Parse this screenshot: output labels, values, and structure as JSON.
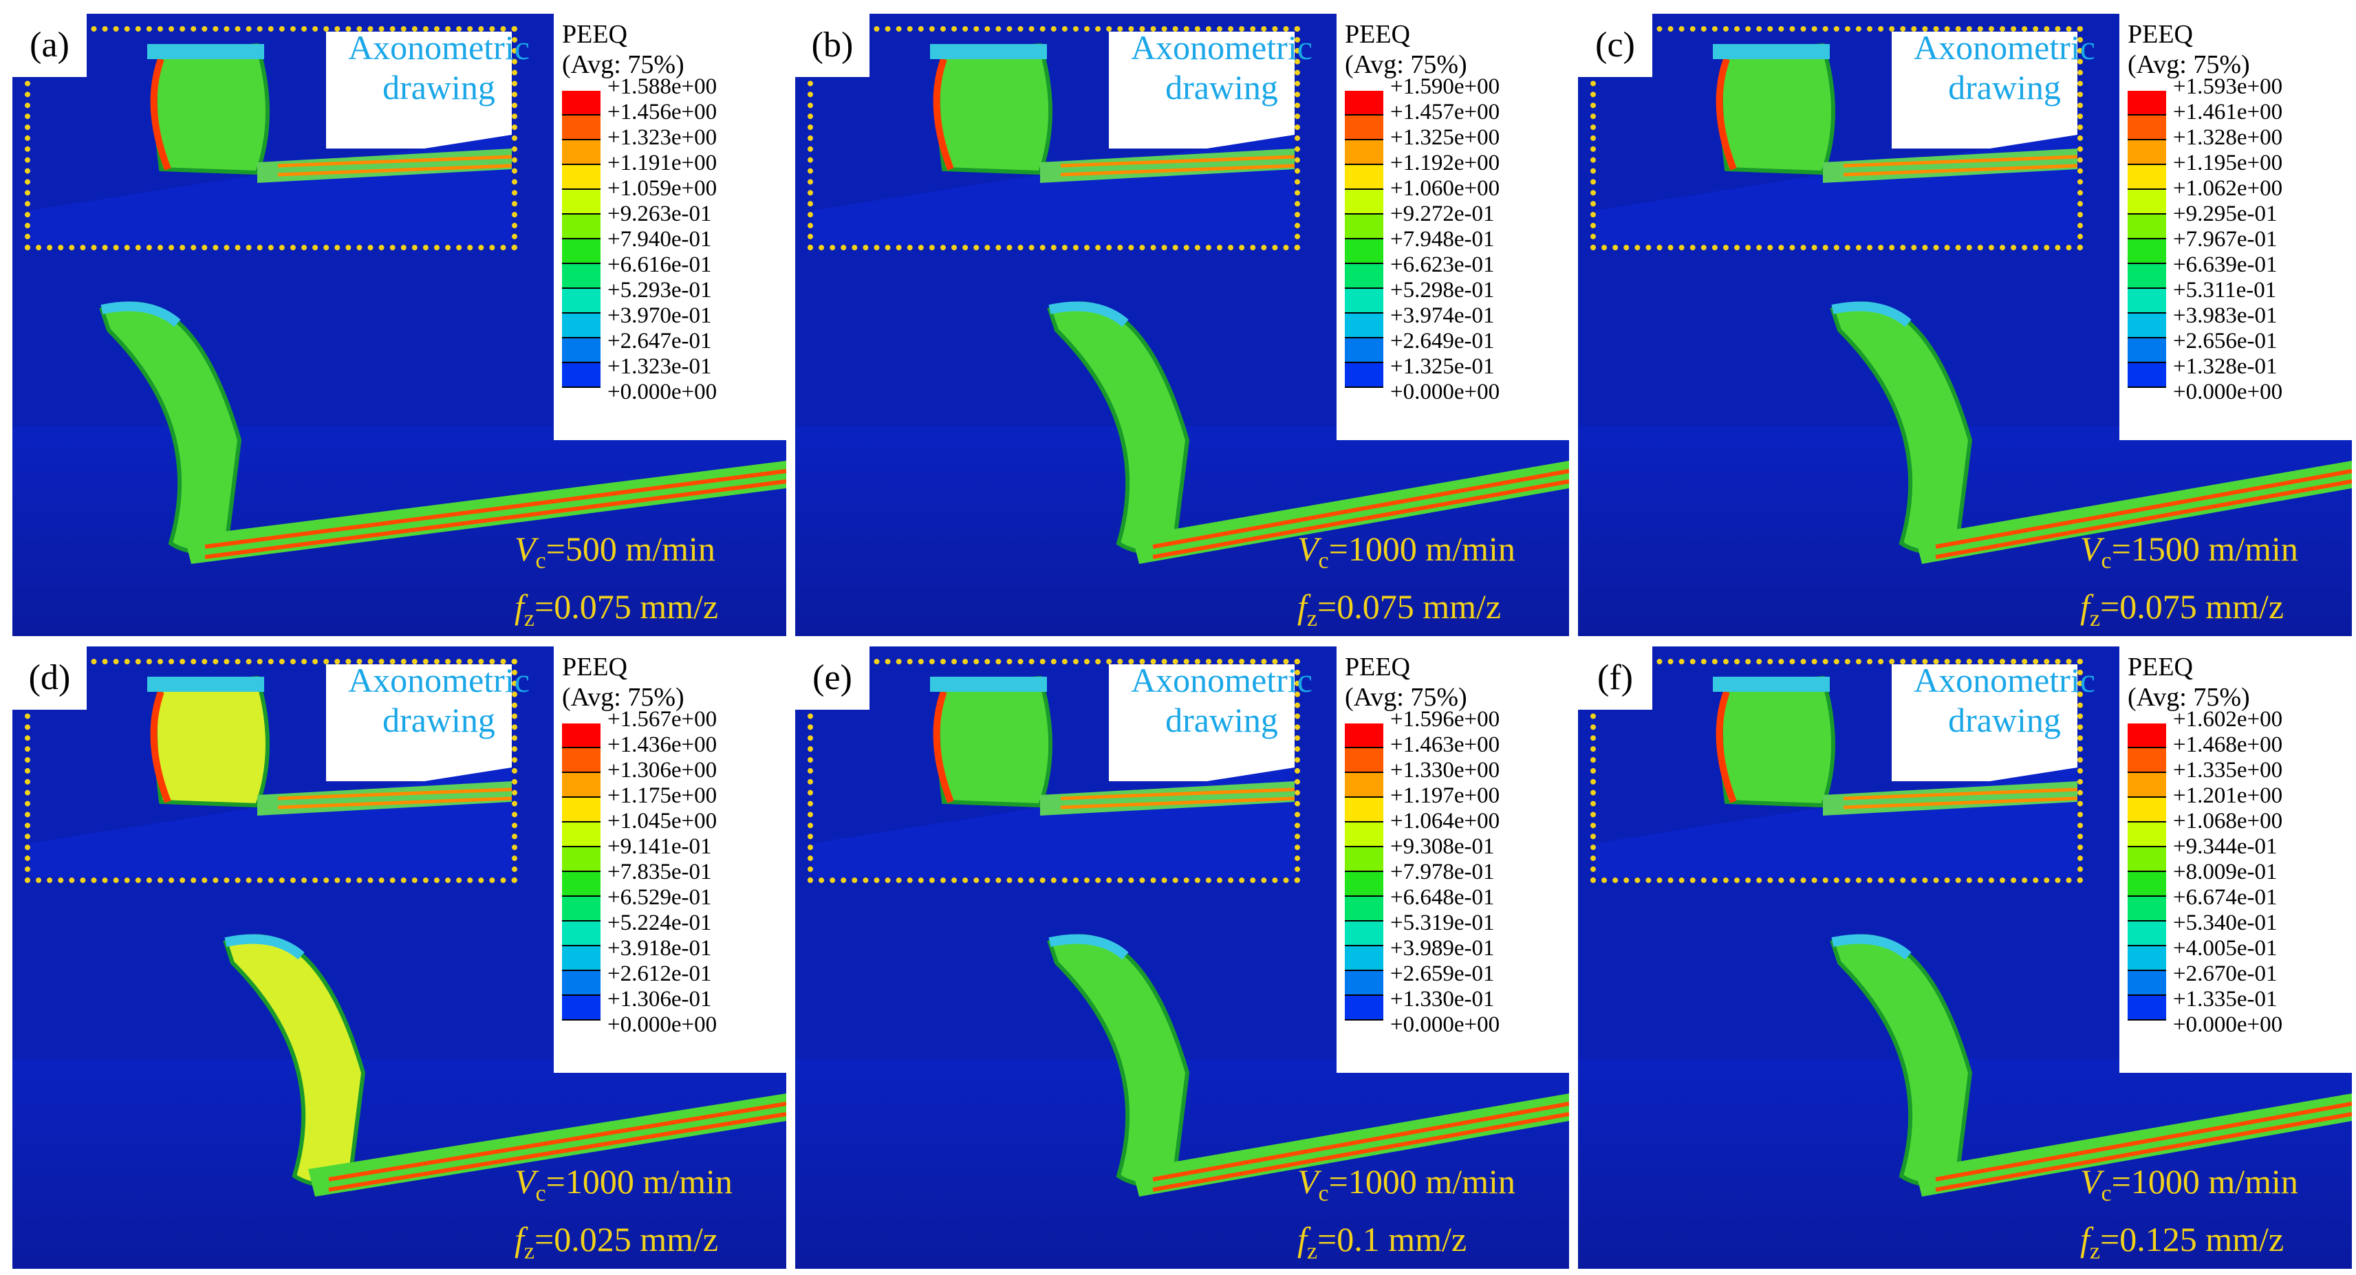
{
  "panels": [
    {
      "label": "(a)",
      "inset_text": [
        "Axonometric",
        "drawing"
      ],
      "legend_title": [
        "PEEQ",
        "(Avg: 75%)"
      ],
      "legend_ticks": [
        "+1.588e+00",
        "+1.456e+00",
        "+1.323e+00",
        "+1.191e+00",
        "+1.059e+00",
        "+9.263e-01",
        "+7.940e-01",
        "+6.616e-01",
        "+5.293e-01",
        "+3.970e-01",
        "+2.647e-01",
        "+1.323e-01",
        "+0.000e+00"
      ],
      "vc_symbol": "V",
      "vc_sub": "c",
      "vc_value": "=500 m/min",
      "fz_symbol": "f",
      "fz_sub": "z",
      "fz_value": "=0.075 mm/z"
    },
    {
      "label": "(b)",
      "inset_text": [
        "Axonometric",
        "drawing"
      ],
      "legend_title": [
        "PEEQ",
        "(Avg: 75%)"
      ],
      "legend_ticks": [
        "+1.590e+00",
        "+1.457e+00",
        "+1.325e+00",
        "+1.192e+00",
        "+1.060e+00",
        "+9.272e-01",
        "+7.948e-01",
        "+6.623e-01",
        "+5.298e-01",
        "+3.974e-01",
        "+2.649e-01",
        "+1.325e-01",
        "+0.000e+00"
      ],
      "vc_symbol": "V",
      "vc_sub": "c",
      "vc_value": "=1000 m/min",
      "fz_symbol": "f",
      "fz_sub": "z",
      "fz_value": "=0.075 mm/z"
    },
    {
      "label": "(c)",
      "inset_text": [
        "Axonometric",
        "drawing"
      ],
      "legend_title": [
        "PEEQ",
        "(Avg: 75%)"
      ],
      "legend_ticks": [
        "+1.593e+00",
        "+1.461e+00",
        "+1.328e+00",
        "+1.195e+00",
        "+1.062e+00",
        "+9.295e-01",
        "+7.967e-01",
        "+6.639e-01",
        "+5.311e-01",
        "+3.983e-01",
        "+2.656e-01",
        "+1.328e-01",
        "+0.000e+00"
      ],
      "vc_symbol": "V",
      "vc_sub": "c",
      "vc_value": "=1500 m/min",
      "fz_symbol": "f",
      "fz_sub": "z",
      "fz_value": "=0.075 mm/z"
    },
    {
      "label": "(d)",
      "inset_text": [
        "Axonometric",
        "drawing"
      ],
      "legend_title": [
        "PEEQ",
        "(Avg: 75%)"
      ],
      "legend_ticks": [
        "+1.567e+00",
        "+1.436e+00",
        "+1.306e+00",
        "+1.175e+00",
        "+1.045e+00",
        "+9.141e-01",
        "+7.835e-01",
        "+6.529e-01",
        "+5.224e-01",
        "+3.918e-01",
        "+2.612e-01",
        "+1.306e-01",
        "+0.000e+00"
      ],
      "vc_symbol": "V",
      "vc_sub": "c",
      "vc_value": "=1000 m/min",
      "fz_symbol": "f",
      "fz_sub": "z",
      "fz_value": "=0.025 mm/z"
    },
    {
      "label": "(e)",
      "inset_text": [
        "Axonometric",
        "drawing"
      ],
      "legend_title": [
        "PEEQ",
        "(Avg: 75%)"
      ],
      "legend_ticks": [
        "+1.596e+00",
        "+1.463e+00",
        "+1.330e+00",
        "+1.197e+00",
        "+1.064e+00",
        "+9.308e-01",
        "+7.978e-01",
        "+6.648e-01",
        "+5.319e-01",
        "+3.989e-01",
        "+2.659e-01",
        "+1.330e-01",
        "+0.000e+00"
      ],
      "vc_symbol": "V",
      "vc_sub": "c",
      "vc_value": "=1000 m/min",
      "fz_symbol": "f",
      "fz_sub": "z",
      "fz_value": "=0.1 mm/z"
    },
    {
      "label": "(f)",
      "inset_text": [
        "Axonometric",
        "drawing"
      ],
      "legend_title": [
        "PEEQ",
        "(Avg: 75%)"
      ],
      "legend_ticks": [
        "+1.602e+00",
        "+1.468e+00",
        "+1.335e+00",
        "+1.201e+00",
        "+1.068e+00",
        "+9.344e-01",
        "+8.009e-01",
        "+6.674e-01",
        "+5.340e-01",
        "+4.005e-01",
        "+2.670e-01",
        "+1.335e-01",
        "+0.000e+00"
      ],
      "vc_symbol": "V",
      "vc_sub": "c",
      "vc_value": "=1000 m/min",
      "fz_symbol": "f",
      "fz_sub": "z",
      "fz_value": "=0.125 mm/z"
    }
  ],
  "legend_colors": [
    "#ff0000",
    "#ff5a00",
    "#ffa200",
    "#ffe400",
    "#c8ff00",
    "#7cf200",
    "#22e41a",
    "#00e46a",
    "#00e4b8",
    "#00bee6",
    "#0078ee",
    "#0034f0"
  ]
}
